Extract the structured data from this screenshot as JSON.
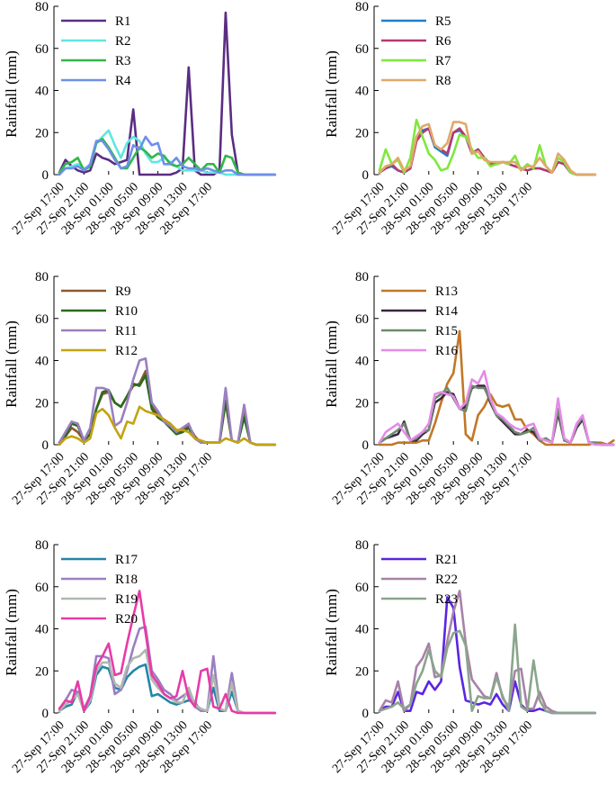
{
  "figure": {
    "x_tick_labels": [
      "27-Sep 17:00",
      "27-Sep 21:00",
      "28-Sep 01:00",
      "28-Sep 05:00",
      "28-Sep 09:00",
      "28-Sep 13:00",
      "28-Sep 17:00"
    ],
    "ylabel": "Rainfall (mm)",
    "y_ticks": [
      "0",
      "20",
      "40",
      "60",
      "80"
    ]
  },
  "chart_data": [
    {
      "type": "line",
      "ylim": [
        0,
        80
      ],
      "ylabel": "Rainfall (mm)",
      "x": [
        0,
        1,
        2,
        3,
        4,
        5,
        6,
        7,
        8,
        9,
        10,
        11,
        12,
        13,
        14,
        15,
        16,
        17,
        18,
        19,
        20,
        21,
        22,
        23,
        24,
        25,
        26,
        27,
        28,
        29,
        30,
        31,
        32,
        33,
        34,
        35
      ],
      "series": [
        {
          "name": "R1",
          "color": "#5b2d82",
          "values": [
            1,
            7,
            4,
            2,
            1,
            2,
            10,
            8,
            7,
            5,
            6,
            7,
            31,
            0,
            0,
            0,
            0,
            0,
            0,
            1,
            3,
            51,
            2,
            0,
            0,
            0,
            2,
            77,
            19,
            1,
            0,
            0,
            0,
            0,
            0,
            0
          ]
        },
        {
          "name": "R2",
          "color": "#5fe6e0",
          "values": [
            1,
            3,
            4,
            5,
            3,
            4,
            15,
            18,
            21,
            14,
            8,
            15,
            18,
            16,
            10,
            6,
            6,
            8,
            6,
            4,
            2,
            2,
            2,
            2,
            1,
            1,
            1,
            0,
            0,
            0,
            0,
            0,
            0,
            0,
            0,
            0
          ]
        },
        {
          "name": "R3",
          "color": "#2fb84a",
          "values": [
            1,
            5,
            6,
            8,
            2,
            4,
            15,
            17,
            13,
            8,
            3,
            3,
            8,
            13,
            11,
            8,
            10,
            9,
            5,
            4,
            5,
            8,
            5,
            2,
            5,
            5,
            1,
            9,
            8,
            1,
            0,
            0,
            0,
            0,
            0,
            0
          ]
        },
        {
          "name": "R4",
          "color": "#6f8fe8",
          "values": [
            0,
            3,
            3,
            4,
            2,
            5,
            16,
            16,
            12,
            7,
            3,
            4,
            14,
            12,
            18,
            14,
            15,
            5,
            5,
            8,
            4,
            3,
            3,
            2,
            3,
            2,
            1,
            2,
            2,
            0,
            0,
            0,
            0,
            0,
            0,
            0
          ]
        }
      ]
    },
    {
      "type": "line",
      "ylim": [
        0,
        80
      ],
      "ylabel": "Rainfall (mm)",
      "x": [
        0,
        1,
        2,
        3,
        4,
        5,
        6,
        7,
        8,
        9,
        10,
        11,
        12,
        13,
        14,
        15,
        16,
        17,
        18,
        19,
        20,
        21,
        22,
        23,
        24,
        25,
        26,
        27,
        28,
        29,
        30,
        31,
        32,
        33,
        34,
        35
      ],
      "series": [
        {
          "name": "R5",
          "color": "#1f7fcc",
          "values": [
            1,
            3,
            4,
            2,
            1,
            3,
            16,
            21,
            22,
            13,
            11,
            9,
            20,
            21,
            18,
            10,
            12,
            8,
            5,
            5,
            6,
            5,
            4,
            3,
            2,
            3,
            3,
            2,
            1,
            6,
            5,
            1,
            0,
            0,
            0,
            0
          ]
        },
        {
          "name": "R6",
          "color": "#b83a6e",
          "values": [
            1,
            3,
            5,
            2,
            1,
            3,
            16,
            20,
            22,
            14,
            12,
            10,
            20,
            22,
            18,
            10,
            12,
            8,
            5,
            5,
            6,
            5,
            4,
            3,
            2,
            3,
            3,
            2,
            1,
            6,
            5,
            1,
            0,
            0,
            0,
            0
          ]
        },
        {
          "name": "R7",
          "color": "#7ee83c",
          "values": [
            2,
            12,
            5,
            7,
            1,
            8,
            26,
            18,
            10,
            7,
            2,
            3,
            10,
            19,
            18,
            12,
            8,
            8,
            4,
            5,
            6,
            5,
            9,
            2,
            5,
            3,
            14,
            4,
            1,
            8,
            6,
            1,
            0,
            0,
            0,
            0
          ]
        },
        {
          "name": "R8",
          "color": "#e0a96a",
          "values": [
            1,
            4,
            5,
            8,
            2,
            4,
            18,
            23,
            24,
            14,
            12,
            15,
            25,
            25,
            24,
            10,
            11,
            7,
            6,
            6,
            6,
            6,
            6,
            2,
            4,
            4,
            8,
            4,
            1,
            10,
            7,
            2,
            0,
            0,
            0,
            0
          ]
        }
      ]
    },
    {
      "type": "line",
      "ylim": [
        0,
        80
      ],
      "ylabel": "Rainfall (mm)",
      "x": [
        0,
        1,
        2,
        3,
        4,
        5,
        6,
        7,
        8,
        9,
        10,
        11,
        12,
        13,
        14,
        15,
        16,
        17,
        18,
        19,
        20,
        21,
        22,
        23,
        24,
        25,
        26,
        27,
        28,
        29,
        30,
        31,
        32,
        33,
        34,
        35
      ],
      "series": [
        {
          "name": "R9",
          "color": "#8a5a32",
          "values": [
            1,
            4,
            8,
            6,
            2,
            5,
            17,
            24,
            25,
            20,
            18,
            23,
            28,
            29,
            35,
            19,
            14,
            12,
            10,
            6,
            7,
            9,
            4,
            1,
            1,
            1,
            1,
            20,
            2,
            1,
            15,
            1,
            0,
            0,
            0,
            0
          ]
        },
        {
          "name": "R10",
          "color": "#2a6a1c",
          "values": [
            1,
            4,
            10,
            9,
            2,
            5,
            17,
            25,
            26,
            20,
            18,
            23,
            29,
            28,
            33,
            17,
            13,
            11,
            8,
            5,
            6,
            8,
            3,
            1,
            1,
            1,
            1,
            21,
            2,
            1,
            13,
            1,
            0,
            0,
            0,
            0
          ]
        },
        {
          "name": "R11",
          "color": "#9b7fc0",
          "values": [
            1,
            6,
            11,
            10,
            2,
            8,
            27,
            27,
            26,
            9,
            11,
            20,
            31,
            40,
            41,
            20,
            16,
            11,
            9,
            6,
            8,
            10,
            3,
            1,
            1,
            1,
            1,
            27,
            2,
            1,
            19,
            1,
            0,
            0,
            0,
            0
          ]
        },
        {
          "name": "R12",
          "color": "#c2a312",
          "values": [
            0,
            3,
            4,
            3,
            1,
            3,
            15,
            17,
            14,
            8,
            3,
            11,
            10,
            18,
            16,
            15,
            14,
            12,
            10,
            7,
            7,
            6,
            3,
            2,
            1,
            1,
            1,
            3,
            2,
            1,
            3,
            1,
            0,
            0,
            0,
            0
          ]
        }
      ]
    },
    {
      "type": "line",
      "ylim": [
        0,
        80
      ],
      "ylabel": "Rainfall (mm)",
      "x": [
        0,
        1,
        2,
        3,
        4,
        5,
        6,
        7,
        8,
        9,
        10,
        11,
        12,
        13,
        14,
        15,
        16,
        17,
        18,
        19,
        20,
        21,
        22,
        23,
        24,
        25,
        26,
        27,
        28,
        29,
        30,
        31,
        32,
        33,
        34,
        35,
        36,
        37,
        38
      ],
      "series": [
        {
          "name": "R13",
          "color": "#c07828",
          "values": [
            0,
            0,
            0,
            1,
            1,
            1,
            1,
            2,
            2,
            10,
            20,
            29,
            34,
            54,
            5,
            2,
            14,
            18,
            24,
            19,
            18,
            19,
            12,
            12,
            7,
            5,
            2,
            0,
            0,
            0,
            0,
            0,
            0,
            0,
            0,
            1,
            1,
            0,
            2
          ]
        },
        {
          "name": "R14",
          "color": "#3b2440",
          "values": [
            1,
            3,
            4,
            5,
            11,
            2,
            2,
            5,
            7,
            20,
            22,
            25,
            24,
            17,
            18,
            27,
            28,
            28,
            20,
            14,
            11,
            8,
            5,
            5,
            7,
            6,
            2,
            3,
            1,
            15,
            2,
            1,
            8,
            12,
            1,
            1,
            0,
            0,
            0
          ]
        },
        {
          "name": "R15",
          "color": "#6e8a6e",
          "values": [
            1,
            3,
            5,
            7,
            10,
            2,
            3,
            6,
            7,
            22,
            24,
            27,
            22,
            17,
            16,
            28,
            27,
            27,
            21,
            14,
            12,
            9,
            6,
            5,
            6,
            8,
            2,
            3,
            1,
            17,
            2,
            1,
            9,
            13,
            1,
            1,
            0,
            0,
            0
          ]
        },
        {
          "name": "R16",
          "color": "#e58be8",
          "values": [
            1,
            6,
            8,
            10,
            6,
            2,
            4,
            6,
            10,
            24,
            25,
            24,
            23,
            17,
            20,
            31,
            29,
            35,
            22,
            15,
            13,
            10,
            8,
            7,
            9,
            10,
            3,
            2,
            1,
            22,
            3,
            1,
            10,
            14,
            1,
            0,
            0,
            0,
            0
          ]
        }
      ]
    },
    {
      "type": "line",
      "ylim": [
        0,
        80
      ],
      "ylabel": "Rainfall (mm)",
      "x": [
        0,
        1,
        2,
        3,
        4,
        5,
        6,
        7,
        8,
        9,
        10,
        11,
        12,
        13,
        14,
        15,
        16,
        17,
        18,
        19,
        20,
        21,
        22,
        23,
        24,
        25,
        26,
        27,
        28,
        29,
        30,
        31,
        32,
        33,
        34,
        35
      ],
      "series": [
        {
          "name": "R17",
          "color": "#2485a8",
          "values": [
            1,
            3,
            4,
            10,
            1,
            5,
            18,
            22,
            21,
            12,
            11,
            17,
            20,
            22,
            23,
            8,
            9,
            7,
            5,
            4,
            5,
            6,
            5,
            1,
            1,
            12,
            1,
            1,
            10,
            1,
            0,
            0,
            0,
            0,
            0,
            0
          ]
        },
        {
          "name": "R18",
          "color": "#9b7fc0",
          "values": [
            1,
            6,
            11,
            10,
            2,
            8,
            27,
            27,
            26,
            9,
            11,
            20,
            31,
            40,
            41,
            20,
            16,
            11,
            9,
            6,
            8,
            10,
            3,
            1,
            1,
            27,
            2,
            1,
            19,
            1,
            0,
            0,
            0,
            0,
            0,
            0
          ]
        },
        {
          "name": "R19",
          "color": "#b0b8b0",
          "values": [
            1,
            4,
            6,
            9,
            1,
            6,
            20,
            24,
            24,
            14,
            12,
            22,
            26,
            27,
            30,
            16,
            12,
            9,
            7,
            5,
            5,
            12,
            4,
            2,
            1,
            18,
            2,
            1,
            14,
            1,
            0,
            0,
            0,
            0,
            0,
            0
          ]
        },
        {
          "name": "R20",
          "color": "#e83aa8",
          "values": [
            2,
            6,
            5,
            15,
            1,
            8,
            22,
            27,
            33,
            18,
            19,
            33,
            46,
            58,
            38,
            18,
            14,
            9,
            7,
            8,
            20,
            7,
            3,
            20,
            21,
            3,
            2,
            9,
            1,
            0,
            0,
            0,
            0,
            0,
            0,
            0
          ]
        }
      ]
    },
    {
      "type": "line",
      "ylim": [
        0,
        80
      ],
      "ylabel": "Rainfall (mm)",
      "x": [
        0,
        1,
        2,
        3,
        4,
        5,
        6,
        7,
        8,
        9,
        10,
        11,
        12,
        13,
        14,
        15,
        16,
        17,
        18,
        19,
        20,
        21,
        22,
        23,
        24,
        25,
        26,
        27,
        28,
        29,
        30,
        31,
        32,
        33,
        34,
        35
      ],
      "series": [
        {
          "name": "R21",
          "color": "#5a26e0",
          "values": [
            1,
            3,
            3,
            10,
            1,
            1,
            10,
            9,
            15,
            11,
            15,
            55,
            50,
            22,
            6,
            5,
            4,
            5,
            4,
            9,
            4,
            1,
            15,
            4,
            1,
            1,
            2,
            1,
            0,
            0,
            0,
            0,
            0,
            0,
            0,
            0
          ]
        },
        {
          "name": "R22",
          "color": "#a882a8",
          "values": [
            1,
            6,
            5,
            15,
            1,
            4,
            22,
            26,
            33,
            17,
            18,
            34,
            48,
            58,
            33,
            16,
            12,
            8,
            7,
            19,
            7,
            3,
            20,
            21,
            2,
            2,
            10,
            3,
            1,
            0,
            0,
            0,
            0,
            0,
            0,
            0
          ]
        },
        {
          "name": "R23",
          "color": "#8aa58c",
          "values": [
            1,
            2,
            3,
            5,
            2,
            4,
            14,
            20,
            30,
            20,
            17,
            31,
            38,
            39,
            32,
            1,
            8,
            7,
            7,
            17,
            8,
            1,
            42,
            3,
            1,
            25,
            6,
            1,
            0,
            0,
            0,
            0,
            0,
            0,
            0,
            0
          ]
        }
      ]
    }
  ]
}
